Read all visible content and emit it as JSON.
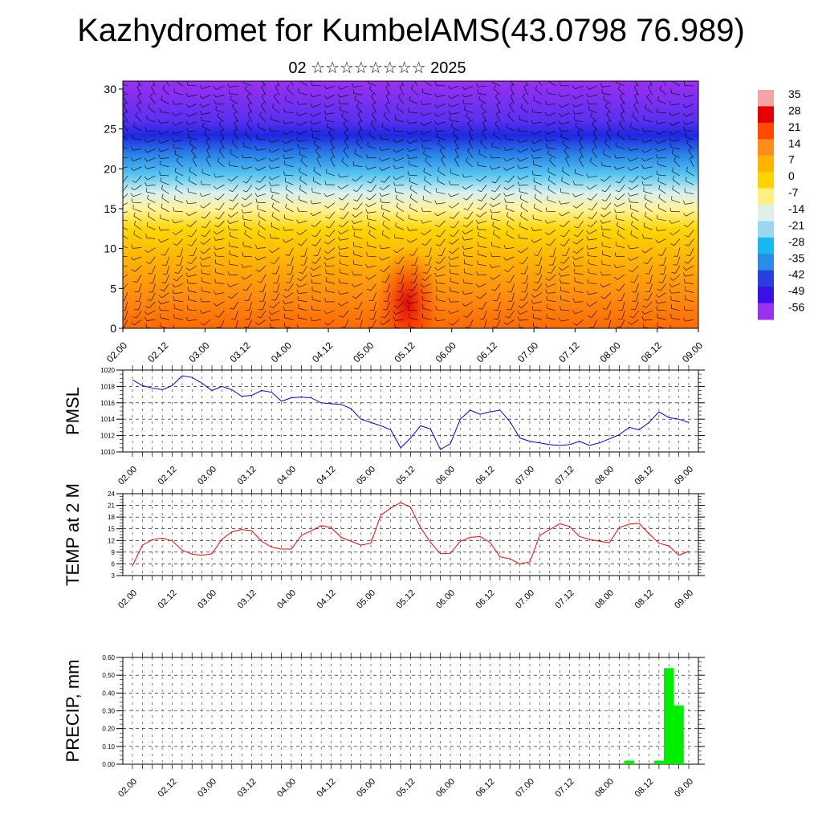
{
  "title": "Kazhydromet for KumbelAMS(43.0798 76.989)",
  "subtitle": "02 ☆☆☆☆☆☆☆☆ 2025",
  "x_tick_labels": [
    "02.00",
    "02.12",
    "03.00",
    "03.12",
    "04.00",
    "04.12",
    "05.00",
    "05.12",
    "06.00",
    "06.12",
    "07.00",
    "07.12",
    "08.00",
    "08.12",
    "09.00"
  ],
  "chart_data": [
    {
      "type": "heatmap",
      "title": "Kazhydromet for KumbelAMS(43.0798 76.989)",
      "subtitle": "02 ☆☆☆☆☆☆☆☆ 2025",
      "xlabel": "",
      "ylabel": "",
      "ylim": [
        0,
        31
      ],
      "y_ticks": [
        0,
        5,
        10,
        15,
        20,
        25,
        30
      ],
      "x_categories": [
        "02.00",
        "02.12",
        "03.00",
        "03.12",
        "04.00",
        "04.12",
        "05.00",
        "05.12",
        "06.00",
        "06.12",
        "07.00",
        "07.12",
        "08.00",
        "08.12",
        "09.00"
      ],
      "colorbar": {
        "labels": [
          "35",
          "28",
          "21",
          "14",
          "7",
          "0",
          "-7",
          "-14",
          "-21",
          "-28",
          "-35",
          "-42",
          "-49",
          "-56"
        ],
        "colors": [
          "#f5a5a5",
          "#e80000",
          "#ff4a00",
          "#ff8c1a",
          "#ffb400",
          "#ffd400",
          "#fff080",
          "#dff0e8",
          "#9ad8f0",
          "#18b8f0",
          "#2a8ce8",
          "#2840e0",
          "#3a10e8",
          "#9a30f0"
        ]
      },
      "overlay": "wind barbs"
    },
    {
      "type": "line",
      "ylabel": "PMSL",
      "ylim": [
        1010,
        1020
      ],
      "y_ticks": [
        "1010",
        "1012",
        "1014",
        "1016",
        "1018",
        "1020"
      ],
      "color": "#0000ff",
      "x_categories": [
        "02.00",
        "02.12",
        "03.00",
        "03.12",
        "04.00",
        "04.12",
        "05.00",
        "05.12",
        "06.00",
        "06.12",
        "07.00",
        "07.12",
        "08.00",
        "08.12",
        "09.00"
      ],
      "x": [
        0,
        3,
        6,
        9,
        12,
        15,
        18,
        21,
        24,
        27,
        30,
        33,
        36,
        39,
        42,
        45,
        48,
        51,
        54,
        57,
        60,
        63,
        66,
        69,
        72,
        75,
        78,
        81,
        84,
        87,
        90,
        93,
        96,
        99,
        102,
        105,
        108,
        111,
        114,
        117,
        120,
        123,
        126,
        129,
        132,
        135,
        138,
        141,
        144,
        147,
        150,
        153,
        156,
        159,
        162,
        165,
        168
      ],
      "values": [
        1018.8,
        1018.1,
        1017.8,
        1017.6,
        1018.1,
        1019.3,
        1019.1,
        1018.4,
        1017.5,
        1018.0,
        1017.6,
        1016.8,
        1016.9,
        1017.5,
        1017.3,
        1016.2,
        1016.6,
        1016.7,
        1016.6,
        1016.0,
        1015.9,
        1015.8,
        1015.3,
        1014.0,
        1013.6,
        1013.2,
        1012.7,
        1010.5,
        1011.7,
        1013.2,
        1012.8,
        1010.3,
        1011.0,
        1014.0,
        1015.1,
        1014.6,
        1014.9,
        1015.1,
        1013.7,
        1011.7,
        1011.3,
        1011.1,
        1010.9,
        1010.8,
        1010.9,
        1011.3,
        1010.8,
        1011.1,
        1011.6,
        1012.1,
        1013.0,
        1012.7,
        1013.6,
        1014.9,
        1014.2,
        1014.0,
        1013.6
      ]
    },
    {
      "type": "line",
      "ylabel": "TEMP at 2 M",
      "ylim": [
        3,
        24
      ],
      "y_ticks": [
        "3",
        "6",
        "9",
        "12",
        "15",
        "18",
        "21",
        "24"
      ],
      "color": "#ff0000",
      "x_categories": [
        "02.00",
        "02.12",
        "03.00",
        "03.12",
        "04.00",
        "04.12",
        "05.00",
        "05.12",
        "06.00",
        "06.12",
        "07.00",
        "07.12",
        "08.00",
        "08.12",
        "09.00"
      ],
      "x": [
        0,
        3,
        6,
        9,
        12,
        15,
        18,
        21,
        24,
        27,
        30,
        33,
        36,
        39,
        42,
        45,
        48,
        51,
        54,
        57,
        60,
        63,
        66,
        69,
        72,
        75,
        78,
        81,
        84,
        87,
        90,
        93,
        96,
        99,
        102,
        105,
        108,
        111,
        114,
        117,
        120,
        123,
        126,
        129,
        132,
        135,
        138,
        141,
        144,
        147,
        150,
        153,
        156,
        159,
        162,
        165,
        168
      ],
      "values": [
        5.5,
        10.8,
        12.2,
        12.6,
        11.9,
        9.5,
        8.5,
        8.2,
        8.6,
        12.3,
        14.2,
        14.8,
        14.5,
        11.8,
        10.3,
        9.8,
        9.8,
        13.3,
        14.5,
        15.8,
        15.3,
        12.8,
        11.8,
        10.8,
        11.3,
        18.5,
        20.3,
        21.7,
        20.5,
        15.3,
        11.5,
        8.6,
        8.7,
        11.8,
        12.8,
        13.0,
        11.5,
        7.8,
        7.3,
        6.0,
        6.5,
        13.3,
        14.8,
        16.3,
        15.6,
        13.0,
        12.3,
        11.8,
        11.4,
        15.3,
        16.2,
        16.4,
        13.7,
        11.3,
        10.6,
        8.2,
        9.2
      ]
    },
    {
      "type": "bar",
      "ylabel": "PRECIP, mm",
      "ylim": [
        0,
        0.6
      ],
      "y_ticks": [
        "0.00",
        "0.10",
        "0.20",
        "0.30",
        "0.40",
        "0.50",
        "0.60"
      ],
      "color": "#00ee00",
      "x_categories": [
        "02.00",
        "02.12",
        "03.00",
        "03.12",
        "04.00",
        "04.12",
        "05.00",
        "05.12",
        "06.00",
        "06.12",
        "07.00",
        "07.12",
        "08.00",
        "08.12",
        "09.00"
      ],
      "x": [
        150,
        159,
        162,
        165
      ],
      "values": [
        0.02,
        0.02,
        0.54,
        0.33
      ]
    }
  ]
}
